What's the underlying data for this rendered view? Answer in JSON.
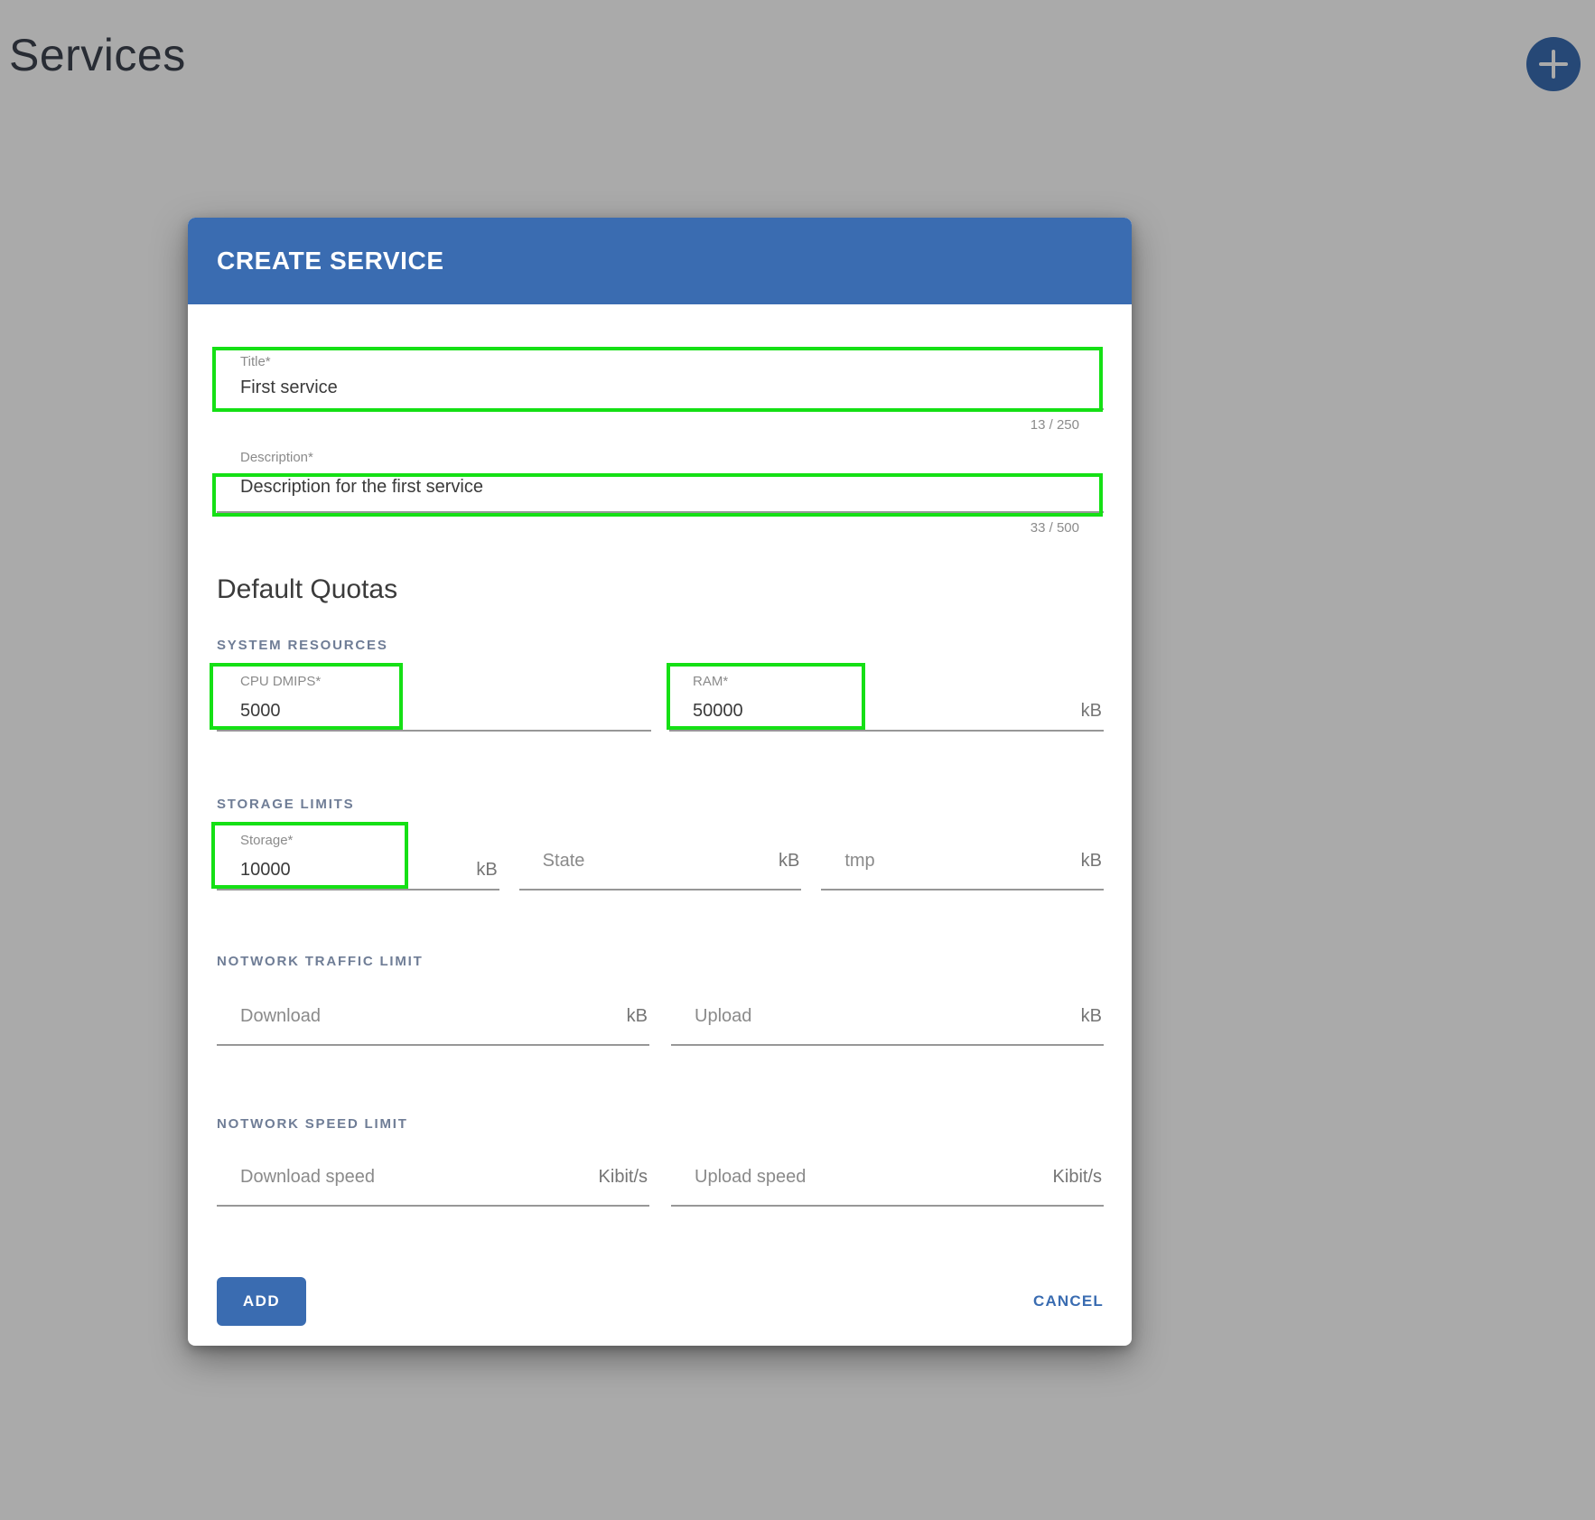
{
  "page": {
    "title": "Services"
  },
  "dialog": {
    "title": "CREATE SERVICE",
    "title_field": {
      "label": "Title*",
      "value": "First service",
      "counter": "13 / 250"
    },
    "description_field": {
      "label": "Description*",
      "value": "Description for the first service",
      "counter": "33 / 500"
    },
    "quotas_heading": "Default Quotas",
    "sections": [
      {
        "label": "SYSTEM RESOURCES",
        "fields": [
          {
            "label": "CPU DMIPS*",
            "value": "5000",
            "suffix": ""
          },
          {
            "label": "RAM*",
            "value": "50000",
            "suffix": "kB"
          }
        ]
      },
      {
        "label": "STORAGE LIMITS",
        "fields": [
          {
            "label": "Storage*",
            "value": "10000",
            "suffix": "kB"
          },
          {
            "placeholder": "State",
            "suffix": "kB"
          },
          {
            "placeholder": "tmp",
            "suffix": "kB"
          }
        ]
      },
      {
        "label": "NOTWORK TRAFFIC LIMIT",
        "fields": [
          {
            "placeholder": "Download",
            "suffix": "kB"
          },
          {
            "placeholder": "Upload",
            "suffix": "kB"
          }
        ]
      },
      {
        "label": "NOTWORK SPEED LIMIT",
        "fields": [
          {
            "placeholder": "Download speed",
            "suffix": "Kibit/s"
          },
          {
            "placeholder": "Upload speed",
            "suffix": "Kibit/s"
          }
        ]
      }
    ],
    "actions": {
      "add": "ADD",
      "cancel": "CANCEL"
    }
  },
  "colors": {
    "primary": "#3a6cb1",
    "annotation_green": "#15e015",
    "scrim": "rgba(0,0,0,0.335)"
  }
}
